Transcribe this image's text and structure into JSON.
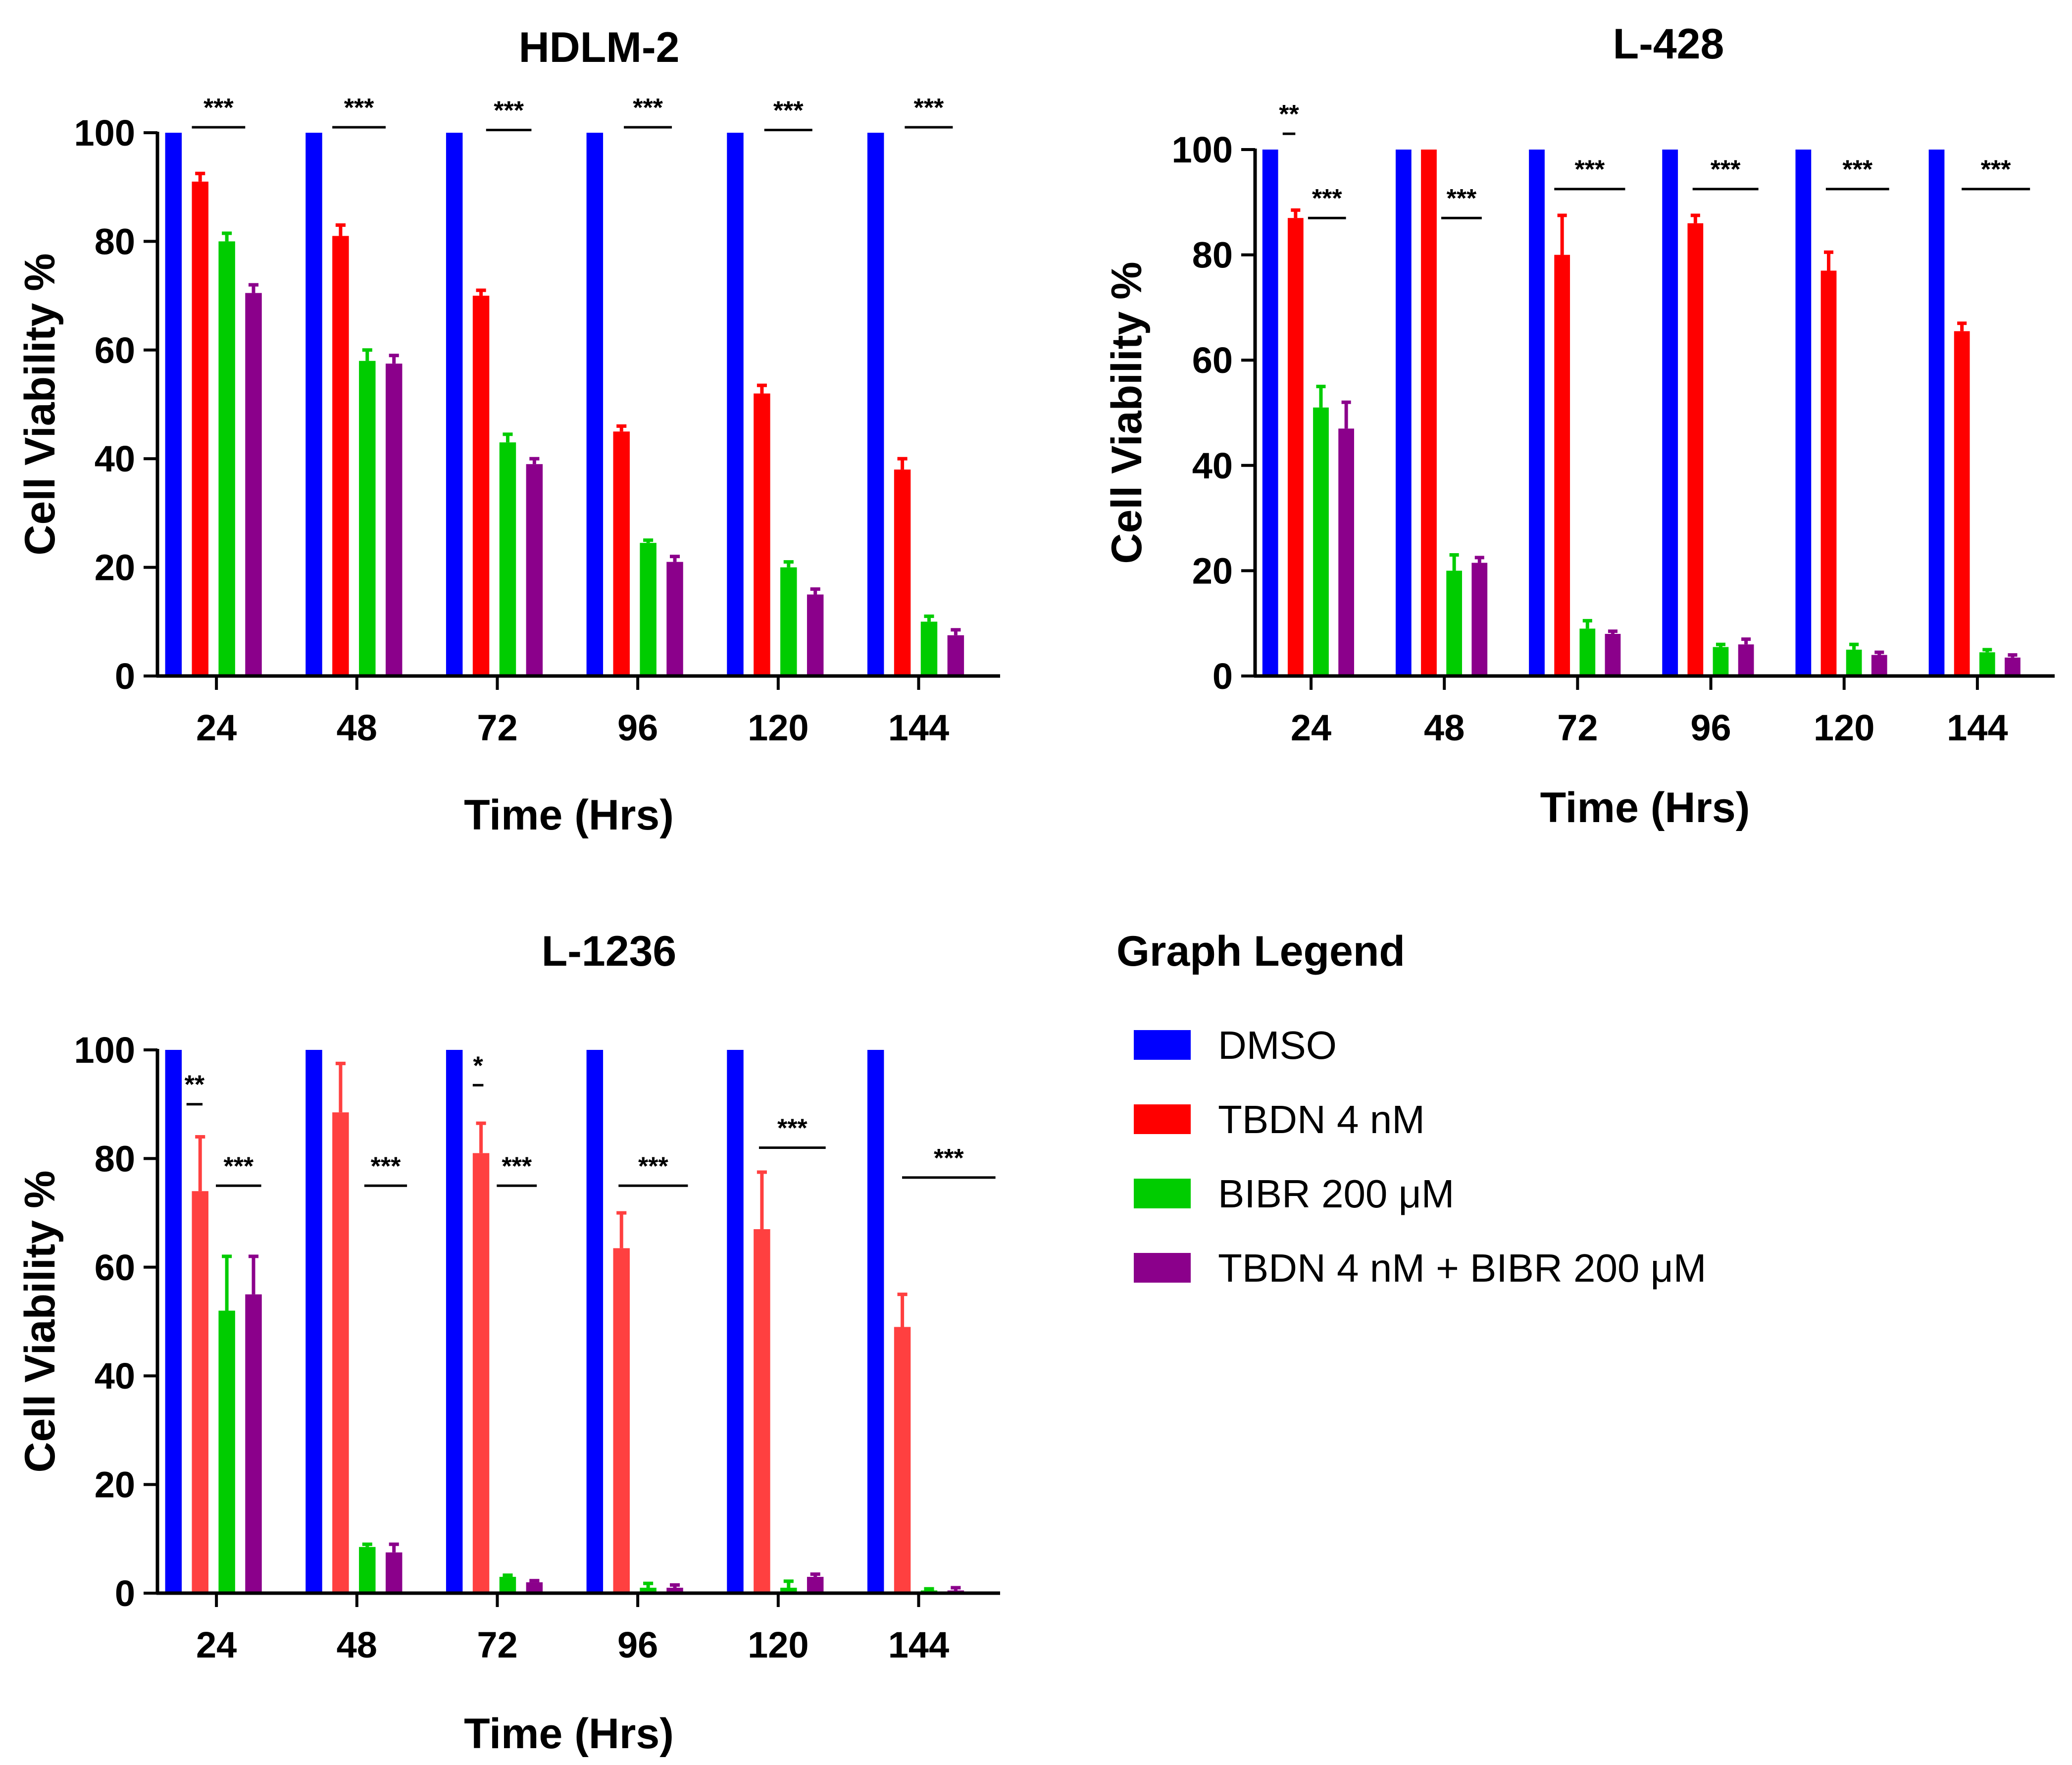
{
  "chart_data": [
    {
      "type": "bar",
      "title": "HDLM-2",
      "xlabel": "Time (Hrs)",
      "ylabel": "Cell Viability %",
      "ylim": [
        0,
        100
      ],
      "yticks": [
        "0",
        "20",
        "40",
        "60",
        "80",
        "100"
      ],
      "categories": [
        "24",
        "48",
        "72",
        "96",
        "120",
        "144"
      ],
      "series": [
        {
          "name": "DMSO",
          "values": [
            100,
            100,
            100,
            100,
            100,
            100
          ],
          "errors": [
            0,
            0,
            0,
            0,
            0,
            0
          ]
        },
        {
          "name": "TBDN 4 nM",
          "values": [
            91,
            81,
            70,
            45,
            52,
            38
          ],
          "errors": [
            1.5,
            2,
            1,
            1,
            1.5,
            2
          ]
        },
        {
          "name": "BIBR 200 μM",
          "values": [
            80,
            58,
            43,
            24.5,
            20,
            10
          ],
          "errors": [
            1.5,
            2,
            1.5,
            0.5,
            1,
            1
          ]
        },
        {
          "name": "TBDN 4 nM + BIBR 200 μM",
          "values": [
            70.5,
            57.5,
            39,
            21,
            15,
            7.5
          ],
          "errors": [
            1.5,
            1.5,
            1,
            1,
            1,
            1
          ]
        }
      ],
      "significance": [
        {
          "label": "***",
          "group": 0,
          "from": 1,
          "to": 3,
          "y": 101
        },
        {
          "label": "***",
          "group": 1,
          "from": 1,
          "to": 3,
          "y": 101
        },
        {
          "label": "***",
          "group": 2,
          "from": 1.5,
          "to": 3.2,
          "y": 100.5
        },
        {
          "label": "***",
          "group": 3,
          "from": 1.4,
          "to": 3.2,
          "y": 101
        },
        {
          "label": "***",
          "group": 4,
          "from": 1.4,
          "to": 3.2,
          "y": 100.5
        },
        {
          "label": "***",
          "group": 5,
          "from": 1.4,
          "to": 3.2,
          "y": 101
        }
      ]
    },
    {
      "type": "bar",
      "title": "L-428",
      "xlabel": "Time (Hrs)",
      "ylabel": "Cell Viability %",
      "ylim": [
        0,
        100
      ],
      "yticks": [
        "0",
        "20",
        "40",
        "60",
        "80",
        "100"
      ],
      "categories": [
        "24",
        "48",
        "72",
        "96",
        "120",
        "144"
      ],
      "series": [
        {
          "name": "DMSO",
          "values": [
            100,
            100,
            100,
            100,
            100,
            100
          ],
          "errors": [
            0,
            0,
            0,
            0,
            0,
            0
          ]
        },
        {
          "name": "TBDN 4 nM",
          "values": [
            87,
            100,
            80,
            86,
            77,
            65.5
          ],
          "errors": [
            1.5,
            0,
            7.5,
            1.5,
            3.5,
            1.5
          ]
        },
        {
          "name": "BIBR 200 μM",
          "values": [
            51,
            20,
            9,
            5.5,
            5,
            4.5
          ],
          "errors": [
            4,
            3,
            1.5,
            0.5,
            1,
            0.5
          ]
        },
        {
          "name": "TBDN 4 nM + BIBR 200 μM",
          "values": [
            47,
            21.5,
            8,
            6,
            4,
            3.5
          ],
          "errors": [
            5,
            1,
            0.5,
            1,
            0.5,
            0.5
          ]
        }
      ],
      "significance": [
        {
          "label": "**",
          "group": 0,
          "from": 0.8,
          "to": 1.3,
          "y": 103
        },
        {
          "label": "***",
          "group": 0,
          "from": 1.8,
          "to": 3.3,
          "y": 87
        },
        {
          "label": "***",
          "group": 1,
          "from": 1.8,
          "to": 3.4,
          "y": 87
        },
        {
          "label": "***",
          "group": 2,
          "from": 1,
          "to": 3.8,
          "y": 92.5
        },
        {
          "label": "***",
          "group": 3,
          "from": 1.2,
          "to": 3.8,
          "y": 92.5
        },
        {
          "label": "***",
          "group": 4,
          "from": 1.2,
          "to": 3.7,
          "y": 92.5
        },
        {
          "label": "***",
          "group": 5,
          "from": 1.3,
          "to": 4.0,
          "y": 92.5
        }
      ]
    },
    {
      "type": "bar",
      "title": "L-1236",
      "xlabel": "Time (Hrs)",
      "ylabel": "Cell Viability %",
      "ylim": [
        0,
        100
      ],
      "yticks": [
        "0",
        "20",
        "40",
        "60",
        "80",
        "100"
      ],
      "categories": [
        "24",
        "48",
        "72",
        "96",
        "120",
        "144"
      ],
      "series": [
        {
          "name": "DMSO",
          "values": [
            100,
            100,
            100,
            100,
            100,
            100
          ],
          "errors": [
            0,
            0,
            0,
            0,
            0,
            0
          ]
        },
        {
          "name": "TBDN 4 nM",
          "values": [
            74,
            88.5,
            81,
            63.5,
            67,
            49
          ],
          "errors": [
            10,
            9,
            5.5,
            6.5,
            10.5,
            6
          ]
        },
        {
          "name": "BIBR 200 μM",
          "values": [
            52,
            8.5,
            3,
            1,
            1,
            0.5
          ],
          "errors": [
            10,
            0.5,
            0.3,
            0.8,
            1.2,
            0.3
          ]
        },
        {
          "name": "TBDN 4 nM + BIBR 200 μM",
          "values": [
            55,
            7.5,
            2,
            1,
            3,
            0.5
          ],
          "errors": [
            7,
            1.5,
            0.3,
            0.5,
            0.5,
            0.5
          ]
        }
      ],
      "significance": [
        {
          "label": "**",
          "group": 0,
          "from": 0.8,
          "to": 1.4,
          "y": 90
        },
        {
          "label": "***",
          "group": 0,
          "from": 1.9,
          "to": 3.6,
          "y": 75
        },
        {
          "label": "***",
          "group": 1,
          "from": 2.2,
          "to": 3.8,
          "y": 75
        },
        {
          "label": "*",
          "group": 2,
          "from": 1.0,
          "to": 1.4,
          "y": 93.5
        },
        {
          "label": "***",
          "group": 2,
          "from": 1.9,
          "to": 3.4,
          "y": 75
        },
        {
          "label": "***",
          "group": 3,
          "from": 1.2,
          "to": 3.8,
          "y": 75
        },
        {
          "label": "***",
          "group": 4,
          "from": 1.2,
          "to": 3.7,
          "y": 82
        },
        {
          "label": "***",
          "group": 5,
          "from": 1.3,
          "to": 4.8,
          "y": 76.5
        }
      ]
    }
  ],
  "legend": {
    "title": "Graph Legend",
    "items": [
      {
        "label": "DMSO",
        "color": "#0000FF"
      },
      {
        "label": "TBDN 4 nM",
        "color": "#FF0000"
      },
      {
        "label": "BIBR 200 μM",
        "color": "#00CC00"
      },
      {
        "label": "TBDN 4 nM + BIBR 200 μM",
        "color": "#8B008B"
      }
    ]
  },
  "colors": {
    "dmso": "#0000FF",
    "tbdn_panels_1_2": "#FF0000",
    "tbdn_panel_3": "#FF4040",
    "bibr": "#00CC00",
    "combo": "#8B008B",
    "axis": "#000000"
  }
}
